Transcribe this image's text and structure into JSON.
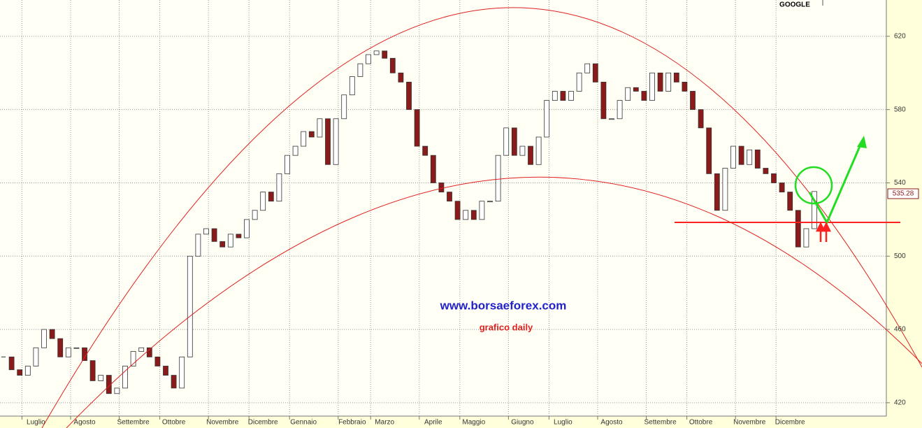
{
  "chart_data": {
    "type": "candlestick",
    "title": "GOOGLE",
    "annotations": [
      "www.borsaeforex.com",
      "grafico daily"
    ],
    "categories": [
      null,
      null,
      null,
      null,
      "Luglio",
      null,
      null,
      null,
      null,
      null,
      "Agosto",
      null,
      null,
      null,
      null,
      null,
      "Settembre",
      null,
      null,
      null,
      null,
      "Ottobre",
      null,
      null,
      null,
      null,
      null,
      "Novembre",
      null,
      null,
      null,
      null,
      "Dicembre",
      null,
      null,
      null,
      null,
      "Gennaio",
      null,
      null,
      null,
      null,
      null,
      "Febbraio",
      null,
      null,
      null,
      "Marzo",
      null,
      null,
      null,
      null,
      null,
      "Aprile",
      null,
      null,
      null,
      null,
      "Maggio",
      null,
      null,
      null,
      null,
      null,
      "Giugno",
      null,
      null,
      null,
      null,
      "Luglio",
      null,
      null,
      null,
      null,
      null,
      "Agosto",
      null,
      null,
      null,
      null,
      null,
      "Settembre",
      null,
      null,
      null,
      null,
      "Ottobre",
      null,
      null,
      null,
      null,
      null,
      "Novembre",
      null,
      null,
      null,
      null,
      "Dicembre",
      null,
      null,
      null
    ],
    "series": [
      {
        "name": "GOOGLE",
        "up_color": "#ffffff",
        "down_color": "#8b1a1a",
        "values": [
          445,
          438,
          435,
          440,
          450,
          460,
          455,
          445,
          450,
          450,
          443,
          432,
          435,
          425,
          428,
          440,
          448,
          450,
          445,
          440,
          435,
          428,
          445,
          500,
          512,
          515,
          508,
          505,
          512,
          510,
          520,
          525,
          535,
          530,
          545,
          555,
          560,
          568,
          565,
          575,
          550,
          575,
          588,
          598,
          605,
          610,
          612,
          608,
          600,
          595,
          580,
          560,
          555,
          540,
          535,
          530,
          520,
          525,
          520,
          530,
          530,
          555,
          570,
          555,
          560,
          550,
          565,
          585,
          590,
          585,
          590,
          600,
          605,
          595,
          575,
          575,
          585,
          592,
          590,
          585,
          600,
          590,
          600,
          595,
          590,
          580,
          570,
          545,
          525,
          548,
          560,
          550,
          558,
          548,
          545,
          540,
          535,
          525,
          505,
          515,
          535.28
        ]
      }
    ],
    "ylim": [
      412.7,
      639.8
    ],
    "yticks": [
      420,
      460,
      500,
      540,
      580,
      620
    ],
    "grid": true
  }
}
